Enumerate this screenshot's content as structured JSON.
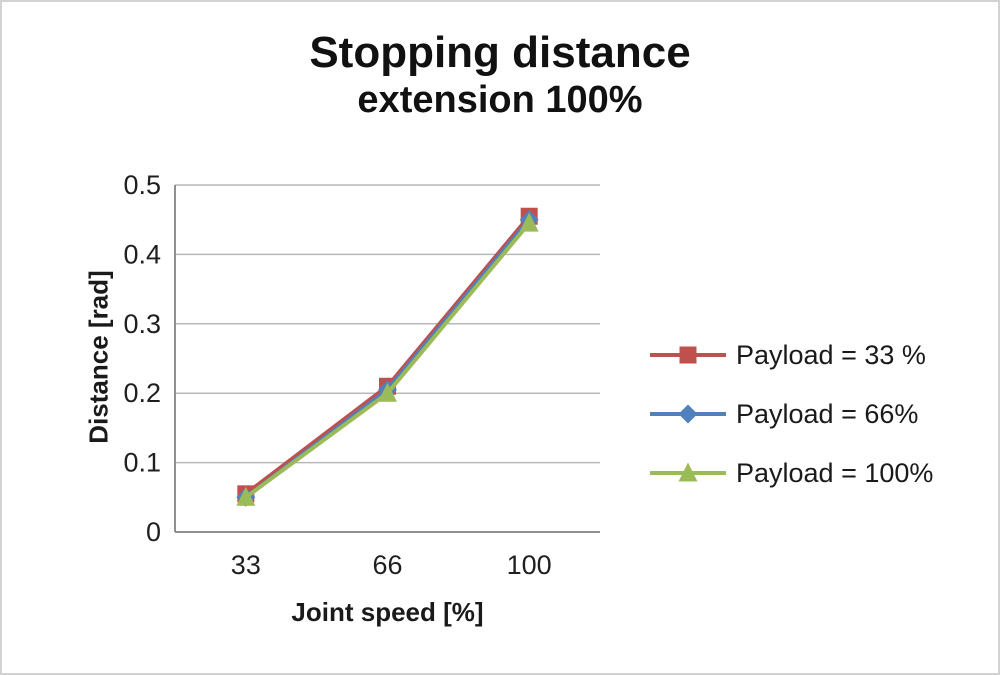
{
  "chart_data": {
    "type": "line",
    "title": "Stopping distance",
    "subtitle": "extension 100%",
    "xlabel": "Joint speed [%]",
    "ylabel": "Distance [rad]",
    "categories": [
      "33",
      "66",
      "100"
    ],
    "ylim": [
      0,
      0.5
    ],
    "yticks": [
      {
        "value": 0,
        "label": "0"
      },
      {
        "value": 0.1,
        "label": "0.1"
      },
      {
        "value": 0.2,
        "label": "0.2"
      },
      {
        "value": 0.3,
        "label": "0.3"
      },
      {
        "value": 0.4,
        "label": "0.4"
      },
      {
        "value": 0.5,
        "label": "0.5"
      }
    ],
    "grid": "horizontal",
    "legend_position": "right",
    "colors": {
      "gridline": "#b8b8b8",
      "axis": "#8f8f8f",
      "series_red": "#c0504d",
      "series_blue": "#4f81bd",
      "series_green": "#9bbb59"
    },
    "series": [
      {
        "name": "Payload = 33 %",
        "color": "#c0504d",
        "marker": "square",
        "values": [
          0.055,
          0.21,
          0.455
        ]
      },
      {
        "name": "Payload =  66%",
        "color": "#4f81bd",
        "marker": "diamond",
        "values": [
          0.05,
          0.205,
          0.45
        ]
      },
      {
        "name": "Payload =  100%",
        "color": "#9bbb59",
        "marker": "triangle",
        "values": [
          0.05,
          0.2,
          0.445
        ]
      }
    ]
  }
}
